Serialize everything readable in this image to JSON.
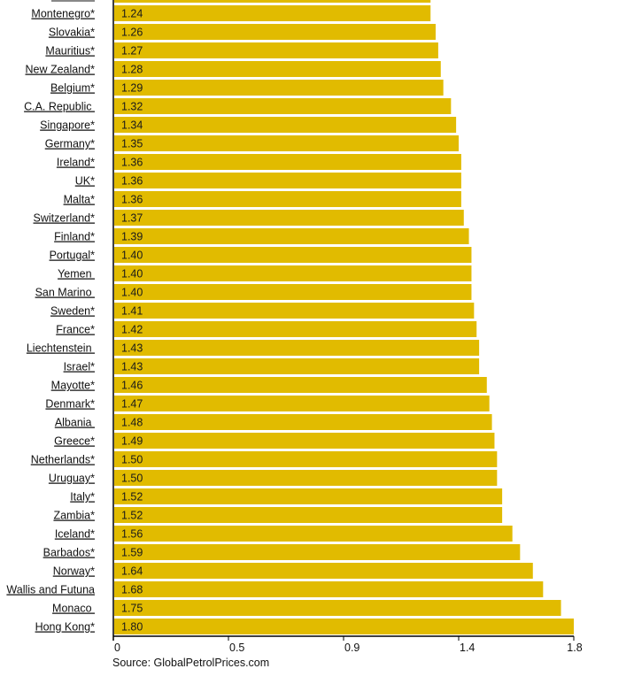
{
  "chart_data": {
    "type": "bar",
    "orientation": "horizontal",
    "title": "",
    "xlabel": "",
    "ylabel": "",
    "xlim": [
      0,
      1.8
    ],
    "grid": false,
    "bar_color": "#E1BB00",
    "categories": [
      "Montenegro*",
      "Slovakia*",
      "Mauritius*",
      "New Zealand*",
      "Belgium*",
      "C.A. Republic ",
      "Singapore*",
      "Germany*",
      "Ireland*",
      "UK*",
      "Malta*",
      "Switzerland*",
      "Finland*",
      "Portugal*",
      "Yemen ",
      "San Marino ",
      "Sweden*",
      "France*",
      "Liechtenstein ",
      "Israel*",
      "Mayotte*",
      "Denmark*",
      "Albania ",
      "Greece*",
      "Netherlands*",
      "Uruguay*",
      "Italy*",
      "Zambia*",
      "Iceland*",
      "Barbados*",
      "Norway*",
      "Wallis and Futuna",
      "Monaco ",
      "Hong Kong*"
    ],
    "values": [
      1.24,
      1.26,
      1.27,
      1.28,
      1.29,
      1.32,
      1.34,
      1.35,
      1.36,
      1.36,
      1.36,
      1.37,
      1.39,
      1.4,
      1.4,
      1.4,
      1.41,
      1.42,
      1.43,
      1.43,
      1.46,
      1.47,
      1.48,
      1.49,
      1.5,
      1.5,
      1.52,
      1.52,
      1.56,
      1.59,
      1.64,
      1.68,
      1.75,
      1.8
    ],
    "value_labels": [
      "1.24",
      "1.26",
      "1.27",
      "1.28",
      "1.29",
      "1.32",
      "1.34",
      "1.35",
      "1.36",
      "1.36",
      "1.36",
      "1.37",
      "1.39",
      "1.40",
      "1.40",
      "1.40",
      "1.41",
      "1.42",
      "1.43",
      "1.43",
      "1.46",
      "1.47",
      "1.48",
      "1.49",
      "1.50",
      "1.50",
      "1.52",
      "1.52",
      "1.56",
      "1.59",
      "1.64",
      "1.68",
      "1.75",
      "1.80"
    ],
    "x_ticks": [
      0,
      0.45,
      0.9,
      1.35,
      1.8
    ],
    "x_tick_labels": [
      "0",
      "0.5",
      "0.9",
      "1.4",
      "1.8"
    ],
    "source": "Source: GlobalPetrolPrices.com"
  }
}
